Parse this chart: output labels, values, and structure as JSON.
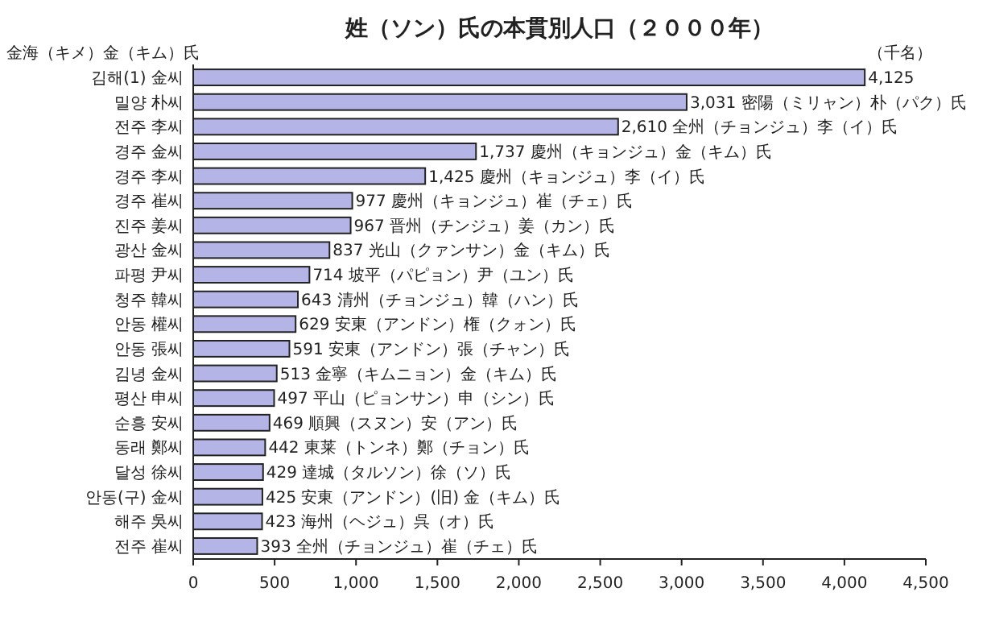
{
  "chart_data": {
    "type": "bar",
    "orientation": "horizontal",
    "title": "姓（ソン）氏の本貫別人口（２０００年）",
    "annotations": [
      "金海（キメ）金（キム）氏",
      "（千名）"
    ],
    "categories": [
      "김해(1) 金씨",
      "밀양 朴씨",
      "전주 李씨",
      "경주 金씨",
      "경주 李씨",
      "경주 崔씨",
      "진주 姜씨",
      "광산 金씨",
      "파평 尹씨",
      "청주 韓씨",
      "안동 權씨",
      "안동 張씨",
      "김녕 金씨",
      "평산 申씨",
      "순흥 安씨",
      "동래 鄭씨",
      "달성 徐씨",
      "안동(구) 金씨",
      "해주 吳씨",
      "전주 崔씨"
    ],
    "values": [
      4125,
      3031,
      2610,
      1737,
      1425,
      977,
      967,
      837,
      714,
      643,
      629,
      591,
      513,
      497,
      469,
      442,
      429,
      425,
      423,
      393
    ],
    "value_labels": [
      "4,125",
      "3,031 密陽（ミリャン）朴（パク）氏",
      "2,610 全州（チョンジュ）李（イ）氏",
      "1,737 慶州（キョンジュ）金（キム）氏",
      "1,425 慶州（キョンジュ）李（イ）氏",
      "977 慶州（キョンジュ）崔（チェ）氏",
      "967 晋州（チンジュ）姜（カン）氏",
      "837 光山（クァンサン）金（キム）氏",
      "714 坡平（パピョン）尹（ユン）氏",
      "643 清州（チョンジュ）韓（ハン）氏",
      "629 安東（アンドン）権（クォン）氏",
      "591 安東（アンドン）張（チャン）氏",
      "513 金寧（キムニョン）金（キム）氏",
      "497 平山（ピョンサン）申（シン）氏",
      "469 順興（スヌン）安（アン）氏",
      "442 東莱（トンネ）鄭（チョン）氏",
      "429 達城（タルソン）徐（ソ）氏",
      "425 安東（アンドン）(旧) 金（キム）氏",
      "423 海州（ヘジュ）呉（オ）氏",
      "393 全州（チョンジュ）崔（チェ）氏"
    ],
    "color": "#b4b4e6",
    "xlim": [
      0,
      4500
    ],
    "xticks": [
      0,
      500,
      {
        "value": 1000,
        "label": "1,000"
      },
      {
        "value": 1500,
        "label": "1,500"
      },
      {
        "value": 2000,
        "label": "2,000"
      },
      {
        "value": 2500,
        "label": "2,500"
      },
      {
        "value": 3000,
        "label": "3,000"
      },
      {
        "value": 3500,
        "label": "3,500"
      },
      {
        "value": 4000,
        "label": "4,000"
      },
      {
        "value": 4500,
        "label": "4,500"
      }
    ],
    "grid": false
  }
}
